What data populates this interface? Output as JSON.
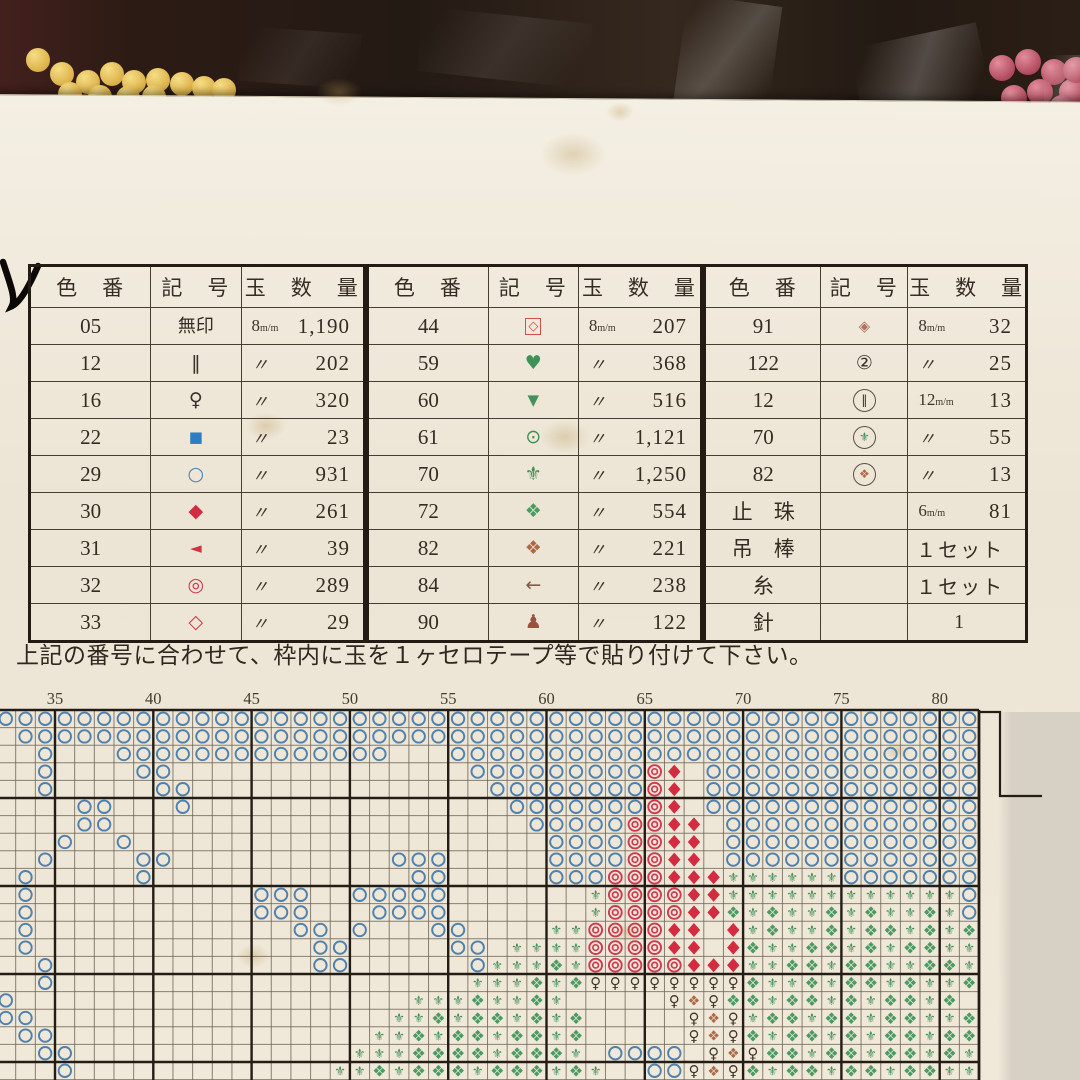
{
  "note": "上記の番号に合わせて、枠内に玉を１ヶセロテープ等で貼り付けて下さい。",
  "legend_headers": [
    "色　番",
    "記　号",
    "玉　数　量"
  ],
  "symbols": {
    "none": {
      "glyph": "無印",
      "color": "#352d23",
      "wrap": "text"
    },
    "dbar": {
      "glyph": "‖",
      "color": "#3a322a",
      "wrap": ""
    },
    "female": {
      "glyph": "♀",
      "color": "#3a322a",
      "wrap": ""
    },
    "bluesq": {
      "glyph": "■",
      "color": "#2e7fc1",
      "wrap": "small"
    },
    "bluecirc": {
      "glyph": "○",
      "color": "#4e81ad",
      "wrap": ""
    },
    "reddia": {
      "glyph": "◆",
      "color": "#d32b40",
      "wrap": ""
    },
    "redtri": {
      "glyph": "◄",
      "color": "#cf3445",
      "wrap": "small"
    },
    "redbull": {
      "glyph": "◎",
      "color": "#cf3950",
      "wrap": ""
    },
    "reddia_o": {
      "glyph": "◇",
      "color": "#d0394c",
      "wrap": ""
    },
    "diasq": {
      "glyph": "◇",
      "color": "#d0504f",
      "wrap": "square"
    },
    "heart": {
      "glyph": "♥",
      "color": "#3f9257",
      "wrap": ""
    },
    "tridown": {
      "glyph": "▼",
      "color": "#46915b",
      "wrap": "small"
    },
    "circdot": {
      "glyph": "⊙",
      "color": "#3f8e55",
      "wrap": ""
    },
    "fleur": {
      "glyph": "⚜",
      "color": "#3e8e55",
      "wrap": ""
    },
    "quad": {
      "glyph": "❖",
      "color": "#4a9a62",
      "wrap": ""
    },
    "quad_o": {
      "glyph": "❖",
      "color": "#ad6a48",
      "wrap": ""
    },
    "arrow": {
      "glyph": "←",
      "color": "#8d5848",
      "wrap": ""
    },
    "pawn": {
      "glyph": "♟",
      "color": "#9c4f3d",
      "wrap": ""
    },
    "diamark": {
      "glyph": "◈",
      "color": "#b07258",
      "wrap": "small"
    },
    "circ2": {
      "glyph": "②",
      "color": "#3a322a",
      "wrap": ""
    },
    "circ_dbar": {
      "glyph": "‖",
      "color": "#3a322a",
      "wrap": "circle"
    },
    "circ_fleur": {
      "glyph": "⚜",
      "color": "#3e8e55",
      "wrap": "circle"
    },
    "circ_quad": {
      "glyph": "❖",
      "color": "#ad6a48",
      "wrap": "circle"
    }
  },
  "tables": [
    {
      "rows": [
        {
          "code": "05",
          "sym": "none",
          "size": "8m/m",
          "qty": "1,190"
        },
        {
          "code": "12",
          "sym": "dbar",
          "size": "〃",
          "qty": "202"
        },
        {
          "code": "16",
          "sym": "female",
          "size": "〃",
          "qty": "320"
        },
        {
          "code": "22",
          "sym": "bluesq",
          "size": "〃",
          "qty": "23"
        },
        {
          "code": "29",
          "sym": "bluecirc",
          "size": "〃",
          "qty": "931"
        },
        {
          "code": "30",
          "sym": "reddia",
          "size": "〃",
          "qty": "261"
        },
        {
          "code": "31",
          "sym": "redtri",
          "size": "〃",
          "qty": "39"
        },
        {
          "code": "32",
          "sym": "redbull",
          "size": "〃",
          "qty": "289"
        },
        {
          "code": "33",
          "sym": "reddia_o",
          "size": "〃",
          "qty": "29"
        }
      ]
    },
    {
      "rows": [
        {
          "code": "44",
          "sym": "diasq",
          "size": "8m/m",
          "qty": "207"
        },
        {
          "code": "59",
          "sym": "heart",
          "size": "〃",
          "qty": "368"
        },
        {
          "code": "60",
          "sym": "tridown",
          "size": "〃",
          "qty": "516"
        },
        {
          "code": "61",
          "sym": "circdot",
          "size": "〃",
          "qty": "1,121"
        },
        {
          "code": "70",
          "sym": "fleur",
          "size": "〃",
          "qty": "1,250"
        },
        {
          "code": "72",
          "sym": "quad",
          "size": "〃",
          "qty": "554"
        },
        {
          "code": "82",
          "sym": "quad_o",
          "size": "〃",
          "qty": "221"
        },
        {
          "code": "84",
          "sym": "arrow",
          "size": "〃",
          "qty": "238"
        },
        {
          "code": "90",
          "sym": "pawn",
          "size": "〃",
          "qty": "122"
        }
      ]
    },
    {
      "rows": [
        {
          "code": "91",
          "sym": "diamark",
          "size": "8m/m",
          "qty": "32"
        },
        {
          "code": "122",
          "sym": "circ2",
          "size": "〃",
          "qty": "25"
        },
        {
          "code": "12",
          "sym": "circ_dbar",
          "size": "12m/m",
          "qty": "13"
        },
        {
          "code": "70",
          "sym": "circ_fleur",
          "size": "〃",
          "qty": "55"
        },
        {
          "code": "82",
          "sym": "circ_quad",
          "size": "〃",
          "qty": "13"
        },
        {
          "code": "止　珠",
          "sym": "",
          "size": "6m/m",
          "qty": "81"
        },
        {
          "code": "吊　棒",
          "sym": "",
          "size": "",
          "qty": "１セット"
        },
        {
          "code": "糸",
          "sym": "",
          "size": "",
          "qty": "１セット"
        },
        {
          "code": "針",
          "sym": "",
          "size": "",
          "qty": "1"
        }
      ]
    }
  ],
  "grid": {
    "column_labels": [
      "35",
      "40",
      "45",
      "50",
      "55",
      "60",
      "65",
      "70",
      "75",
      "80"
    ],
    "legend": "o=blue circle, r=red double-circle, d=red diamond, q=female sign, f=green fleur, x=green quad-diamond, b=brown quad-diamond, .=empty",
    "rows": [
      "oooooooooooooooooooooooooooooooooooooooooooooooooo",
      ".ooooooooooooooooooooooooooooooooooooooooooooooooo",
      "..o...oooooooooooooo...ooooooooooooooooooooooooooo",
      "..o....oo...............ooooooooord.oooooooooooooo",
      "..o.....oo...............oooooooord.oooooooooooooo",
      "....oo...o................ooooooord.oooooooooooooo",
      "....oo.....................ooooorrdd.ooooooooooooo",
      "...o..o.....................oooorrdd.ooooooooooooo",
      "..o....oo...........ooo.....oooorrdd.ooooooooooooo",
      ".o.....o.............oo.....ooorrrdddffffffooooooo",
      ".o...........ooo..ooooo.......frrrrddffffffffffffo",
      ".o...........ooo...oooo.......frrrrddxfxffxfxffxfo",
      ".o.............oo.o...oo....ffrrrrdd.dfxffxfxxfxfx",
      ".o..............oo.....oo.ffffrrrrdd.dxffxxfxfxxff",
      "..o.............oo......offfxfrrrrrdddffxxfxxffxxf",
      "..o.....................fffxfxqqqqqqqqxffxfxxfxffx",
      "o....................fffxffxf.....qbqxxfxxfxfxxfx",
      "oo..................ffxfxxfxfx.....qbqfxxfxxfxxffx",
      ".oo................ffxfxxfxxfx.....qbqxfxxfxfxxfxx",
      "..oo..............fffxxxxfxxxf.oooo qbqxxfxxfxxfxfx",
      "...o.............ffxfxxxfxxxfxf..ooqbqxfxxfxxfxxff"
    ]
  },
  "grid_symbols": {
    "o": {
      "type": "circle",
      "color": "#4e81ad"
    },
    "r": {
      "type": "bullseye",
      "color": "#cf3950"
    },
    "d": {
      "type": "diamond",
      "color": "#d32b40"
    },
    "q": {
      "type": "glyph",
      "glyph": "♀",
      "color": "#433629",
      "size": 15
    },
    "f": {
      "type": "glyph",
      "glyph": "⚜",
      "color": "#3e8e55",
      "size": 13
    },
    "x": {
      "type": "glyph",
      "glyph": "❖",
      "color": "#4a9a62",
      "size": 16
    },
    "b": {
      "type": "glyph",
      "glyph": "❖",
      "color": "#ad6a48",
      "size": 14
    }
  },
  "colors": {
    "paper": "#efe8da",
    "bag_dark": "#241a14",
    "bead_yellow": "#dcb148",
    "bead_pink": "#b14a5e",
    "grid_line_thin": "#6e6455",
    "grid_line_heavy": "#241d15",
    "table_border": "#231c14",
    "ink": "#0b0906"
  }
}
